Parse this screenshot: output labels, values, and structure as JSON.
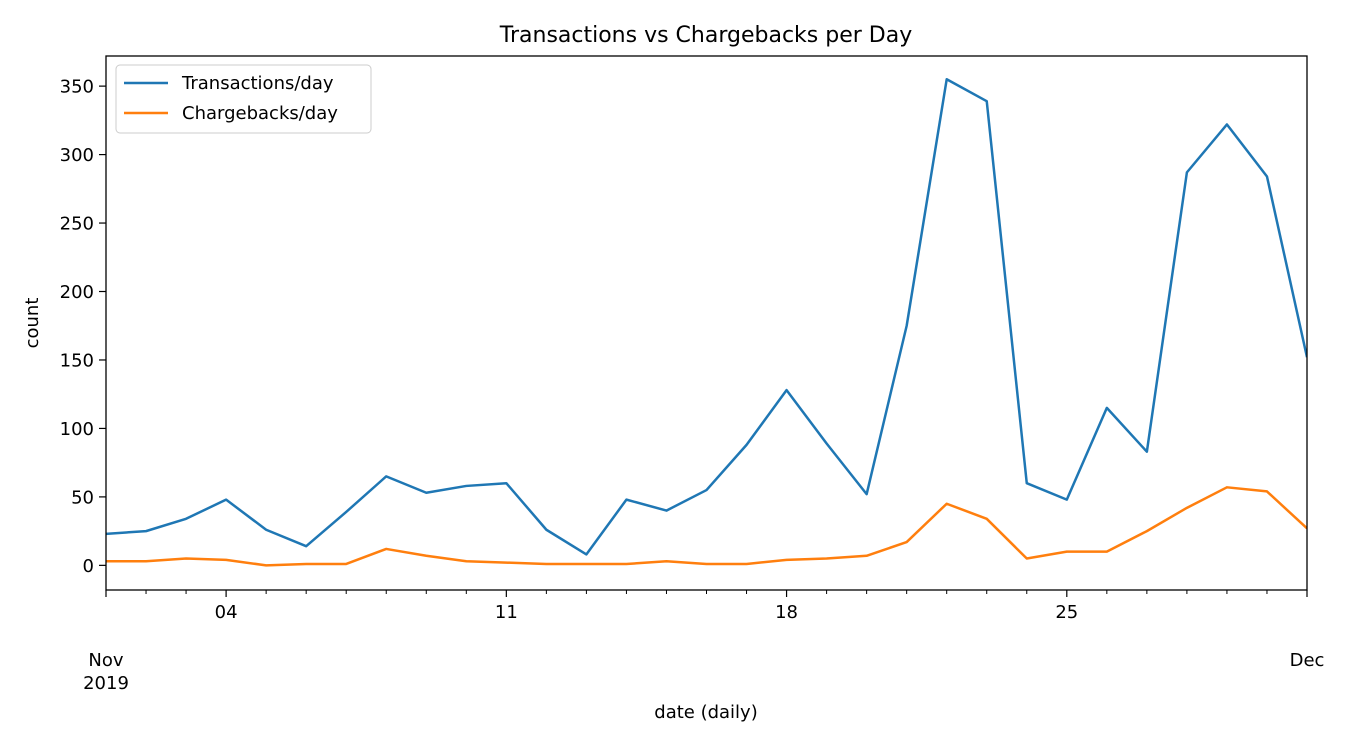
{
  "chart_data": {
    "type": "line",
    "title": "Transactions vs Chargebacks per Day",
    "xlabel": "date (daily)",
    "ylabel": "count",
    "x": [
      "2019-11-01",
      "2019-11-02",
      "2019-11-03",
      "2019-11-04",
      "2019-11-05",
      "2019-11-06",
      "2019-11-07",
      "2019-11-08",
      "2019-11-09",
      "2019-11-10",
      "2019-11-11",
      "2019-11-12",
      "2019-11-13",
      "2019-11-14",
      "2019-11-15",
      "2019-11-16",
      "2019-11-17",
      "2019-11-18",
      "2019-11-19",
      "2019-11-20",
      "2019-11-21",
      "2019-11-22",
      "2019-11-23",
      "2019-11-24",
      "2019-11-25",
      "2019-11-26",
      "2019-11-27",
      "2019-11-28",
      "2019-11-29",
      "2019-11-30",
      "2019-12-01"
    ],
    "xlim": [
      "2019-11-01",
      "2019-12-01"
    ],
    "ylim": [
      -18,
      372
    ],
    "yticks": [
      0,
      50,
      100,
      150,
      200,
      250,
      300,
      350
    ],
    "xticks_major": [
      {
        "date": "2019-11-01",
        "label": "Nov",
        "sublabel": "2019"
      },
      {
        "date": "2019-11-04",
        "label": "04",
        "sublabel": ""
      },
      {
        "date": "2019-11-11",
        "label": "11",
        "sublabel": ""
      },
      {
        "date": "2019-11-18",
        "label": "18",
        "sublabel": ""
      },
      {
        "date": "2019-11-25",
        "label": "25",
        "sublabel": ""
      },
      {
        "date": "2019-12-01",
        "label": "Dec",
        "sublabel": ""
      }
    ],
    "legend_position": "upper-left",
    "grid": false,
    "series": [
      {
        "name": "Transactions/day",
        "color": "#1f77b4",
        "values": [
          23,
          25,
          34,
          48,
          26,
          14,
          39,
          65,
          53,
          58,
          60,
          26,
          8,
          48,
          40,
          55,
          88,
          128,
          89,
          52,
          175,
          355,
          339,
          60,
          48,
          115,
          83,
          287,
          322,
          284,
          152
        ]
      },
      {
        "name": "Chargebacks/day",
        "color": "#ff7f0e",
        "values": [
          3,
          3,
          5,
          4,
          0,
          1,
          1,
          12,
          7,
          3,
          2,
          1,
          1,
          1,
          3,
          1,
          1,
          4,
          5,
          7,
          17,
          45,
          34,
          5,
          10,
          10,
          25,
          42,
          57,
          54,
          27
        ]
      }
    ]
  }
}
